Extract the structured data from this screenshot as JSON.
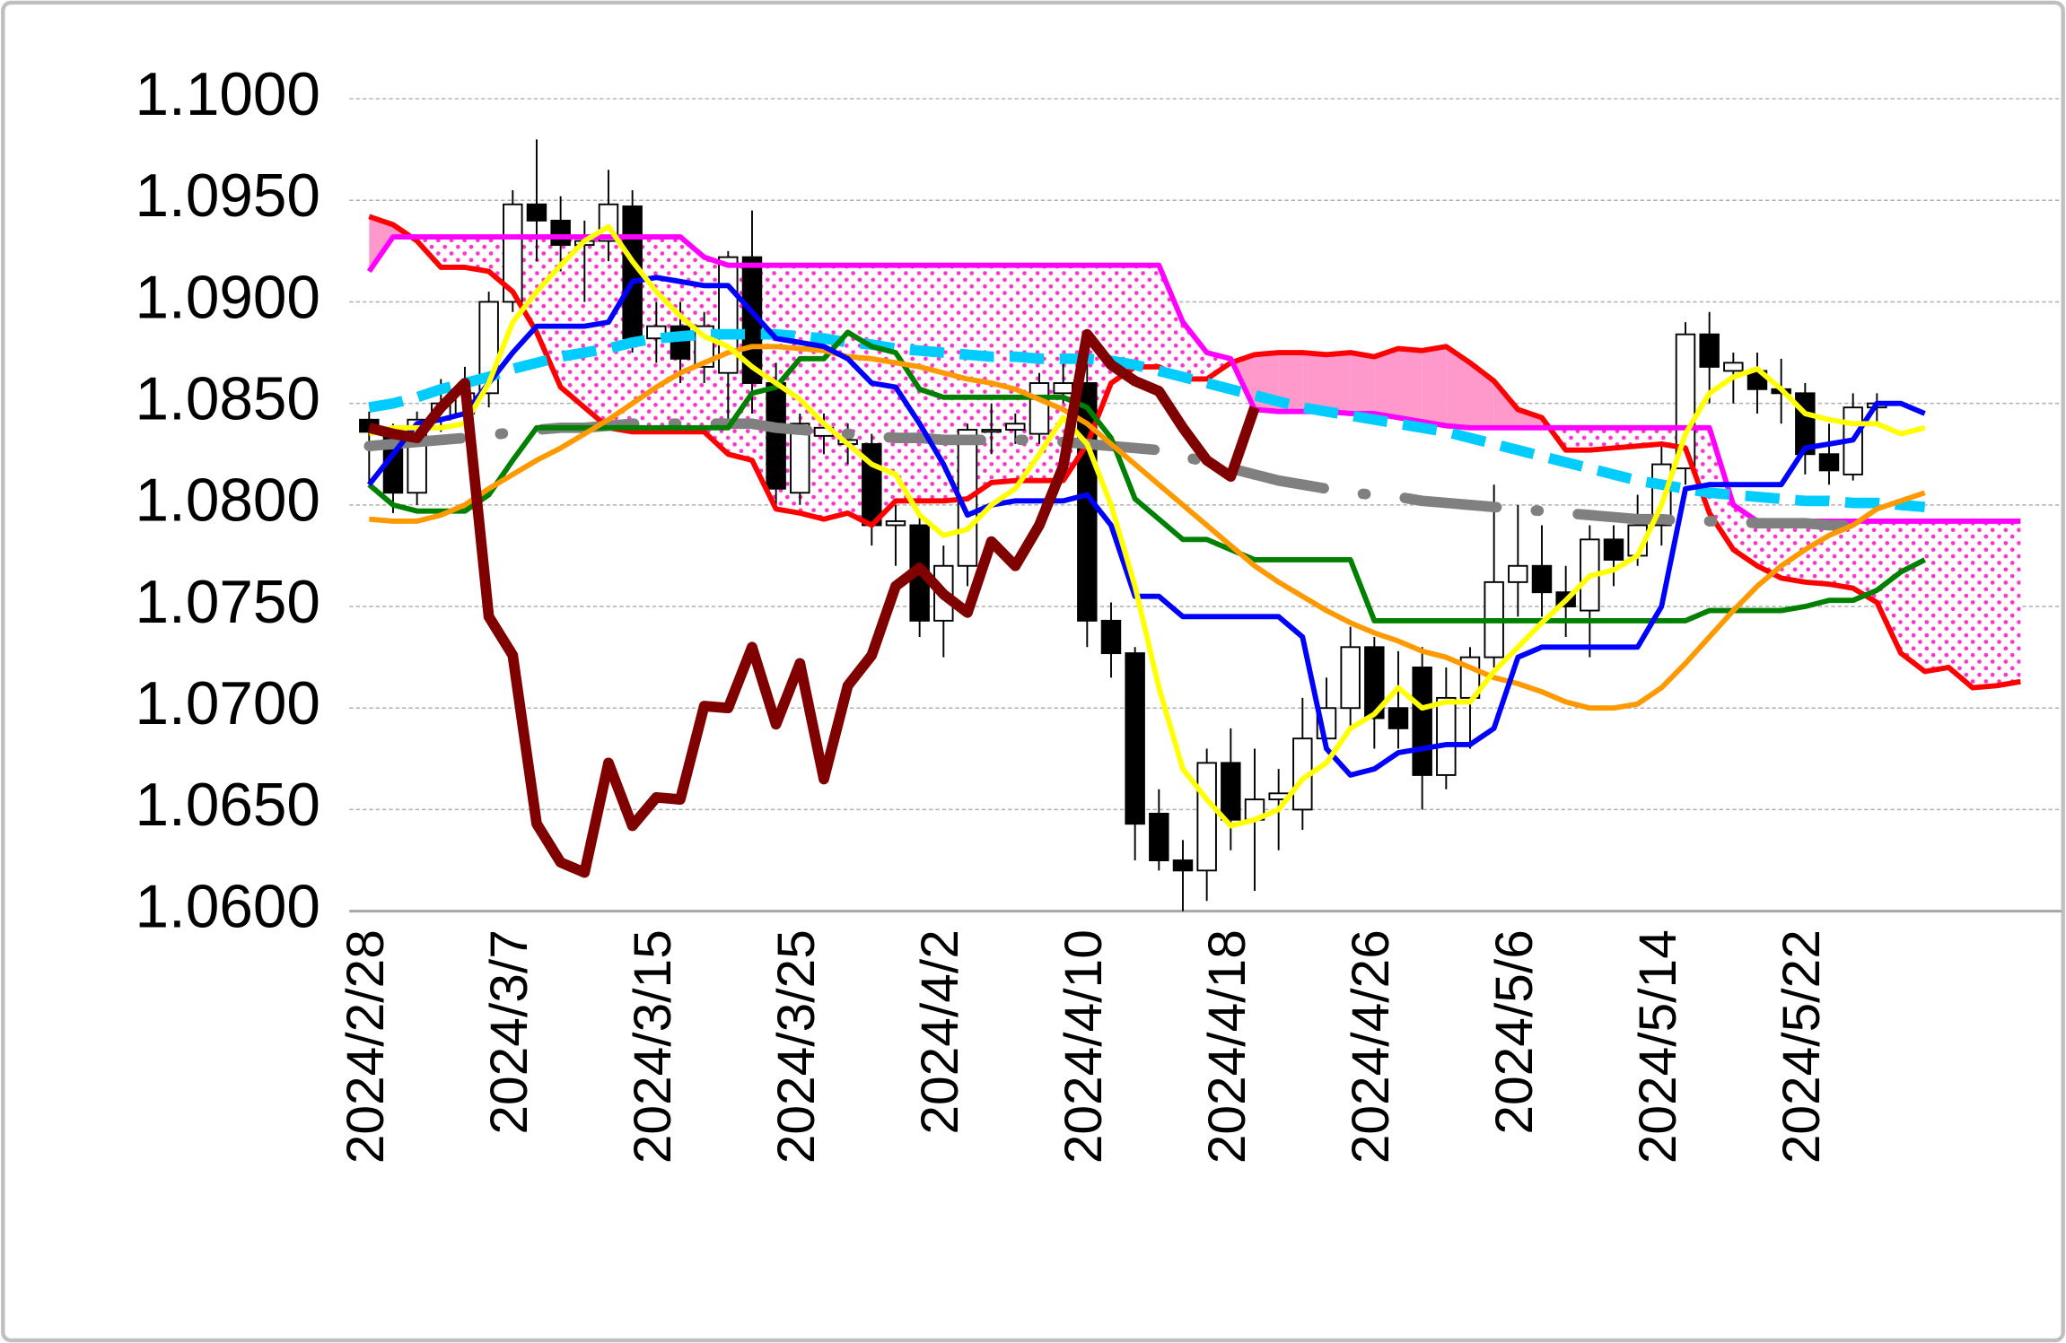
{
  "chart_data": {
    "type": "candlestick",
    "categories": [
      "2024/2/28",
      null,
      null,
      null,
      null,
      null,
      "2024/3/7",
      null,
      null,
      null,
      null,
      null,
      "2024/3/15",
      null,
      null,
      null,
      null,
      null,
      "2024/3/25",
      null,
      null,
      null,
      null,
      null,
      "2024/4/2",
      null,
      null,
      null,
      null,
      null,
      "2024/4/10",
      null,
      null,
      null,
      null,
      null,
      "2024/4/18",
      null,
      null,
      null,
      null,
      null,
      "2024/4/26",
      null,
      null,
      null,
      null,
      null,
      "2024/5/6",
      null,
      null,
      null,
      null,
      null,
      "2024/5/14",
      null,
      null,
      null,
      null,
      null,
      "2024/5/22",
      null,
      null,
      null,
      null,
      null,
      null,
      null,
      null,
      null
    ],
    "ylim": [
      1.06,
      1.1
    ],
    "yticks": [
      {
        "value": 1.06,
        "label": "1.0600"
      },
      {
        "value": 1.065,
        "label": "1.0650"
      },
      {
        "value": 1.07,
        "label": "1.0700"
      },
      {
        "value": 1.075,
        "label": "1.0750"
      },
      {
        "value": 1.08,
        "label": "1.0800"
      },
      {
        "value": 1.085,
        "label": "1.0850"
      },
      {
        "value": 1.09,
        "label": "1.0900"
      },
      {
        "value": 1.095,
        "label": "1.0950"
      },
      {
        "value": 1.1,
        "label": "1.1000"
      }
    ],
    "grid": true,
    "cloud": true,
    "candles": {
      "up_color": "#ffffff",
      "down_color": "#000000",
      "open": [
        1.0842,
        1.0836,
        1.0806,
        1.0842,
        1.0845,
        1.0855,
        1.09,
        1.0948,
        1.094,
        1.0928,
        1.093,
        1.0947,
        1.0882,
        1.0888,
        1.0868,
        1.0865,
        1.0922,
        1.086,
        1.0806,
        1.0834,
        1.083,
        1.083,
        1.079,
        1.079,
        1.0743,
        1.077,
        1.0837,
        1.0837,
        1.0835,
        1.0855,
        1.086,
        1.0743,
        1.0727,
        1.0648,
        1.0625,
        1.062,
        1.0673,
        1.0645,
        1.0655,
        1.065,
        1.0685,
        1.07,
        1.073,
        1.07,
        1.072,
        1.0667,
        1.0705,
        1.0725,
        1.0762,
        1.077,
        1.0757,
        1.0748,
        1.0783,
        1.0775,
        1.079,
        1.0818,
        1.0884,
        1.0866,
        1.0866,
        1.0857,
        1.0855,
        1.0825,
        1.0815,
        1.0848,
        null,
        null,
        null,
        null,
        null,
        null
      ],
      "high": [
        1.0846,
        1.084,
        1.0846,
        1.0862,
        1.0868,
        1.0905,
        1.0955,
        1.098,
        1.0952,
        1.094,
        1.0965,
        1.0955,
        1.09,
        1.09,
        1.0895,
        1.0925,
        1.0945,
        1.087,
        1.0845,
        1.0845,
        1.084,
        1.0835,
        1.08,
        1.0795,
        1.078,
        1.084,
        1.085,
        1.0845,
        1.0865,
        1.087,
        1.088,
        1.0752,
        1.073,
        1.066,
        1.0635,
        1.068,
        1.069,
        1.068,
        1.067,
        1.0705,
        1.0715,
        1.074,
        1.0735,
        1.0728,
        1.073,
        1.072,
        1.073,
        1.081,
        1.08,
        1.079,
        1.077,
        1.079,
        1.079,
        1.0805,
        1.083,
        1.089,
        1.0895,
        1.0875,
        1.0875,
        1.0872,
        1.086,
        1.084,
        1.0855,
        1.0855,
        null,
        null,
        null,
        null,
        null,
        null
      ],
      "low": [
        1.081,
        1.0796,
        1.08,
        1.0836,
        1.084,
        1.0848,
        1.0895,
        1.092,
        1.0915,
        1.09,
        1.092,
        1.0875,
        1.087,
        1.086,
        1.086,
        1.084,
        1.0845,
        1.08,
        1.08,
        1.0825,
        1.082,
        1.078,
        1.077,
        1.0735,
        1.0725,
        1.076,
        1.0825,
        1.083,
        1.083,
        1.085,
        1.073,
        1.0715,
        1.0625,
        1.062,
        1.06,
        1.0605,
        1.063,
        1.061,
        1.063,
        1.064,
        1.068,
        1.069,
        1.068,
        1.068,
        1.065,
        1.066,
        1.068,
        1.072,
        1.0745,
        1.0745,
        1.0735,
        1.0725,
        1.076,
        1.077,
        1.078,
        1.081,
        1.085,
        1.085,
        1.0845,
        1.084,
        1.0815,
        1.081,
        1.0812,
        1.084,
        null,
        null,
        null,
        null,
        null,
        null
      ],
      "close": [
        1.0836,
        1.0806,
        1.0842,
        1.085,
        1.0855,
        1.09,
        1.0948,
        1.094,
        1.0928,
        1.093,
        1.0948,
        1.0882,
        1.0888,
        1.0872,
        1.0888,
        1.0922,
        1.086,
        1.0808,
        1.084,
        1.0838,
        1.0832,
        1.079,
        1.0792,
        1.0743,
        1.077,
        1.0837,
        1.0837,
        1.084,
        1.086,
        1.086,
        1.0743,
        1.0727,
        1.0643,
        1.0625,
        1.062,
        1.0673,
        1.0645,
        1.0655,
        1.0658,
        1.0685,
        1.07,
        1.073,
        1.0695,
        1.069,
        1.0667,
        1.0705,
        1.0725,
        1.0762,
        1.077,
        1.0757,
        1.075,
        1.0783,
        1.0773,
        1.079,
        1.082,
        1.0884,
        1.0868,
        1.087,
        1.0857,
        1.0855,
        1.0825,
        1.0817,
        1.0848,
        1.085,
        null,
        null,
        null,
        null,
        null,
        null
      ]
    },
    "series": [
      {
        "color": "#ff0000",
        "style": "solid",
        "values": [
          1.0942,
          1.0938,
          1.093,
          1.0917,
          1.0917,
          1.0915,
          1.0905,
          1.0885,
          1.0858,
          1.0848,
          1.0838,
          1.0836,
          1.0836,
          1.0836,
          1.0836,
          1.0825,
          1.0822,
          1.0798,
          1.0796,
          1.0793,
          1.0796,
          1.079,
          1.0802,
          1.0802,
          1.0802,
          1.0803,
          1.0811,
          1.0812,
          1.0812,
          1.0812,
          1.083,
          1.086,
          1.0868,
          1.0868,
          1.0862,
          1.0862,
          1.087,
          1.0874,
          1.0875,
          1.0875,
          1.0874,
          1.0875,
          1.0873,
          1.0877,
          1.0876,
          1.0878,
          1.087,
          1.0861,
          1.0847,
          1.0843,
          1.0827,
          1.0827,
          1.0828,
          1.0829,
          1.083,
          1.0828,
          1.0796,
          1.0778,
          1.077,
          1.0764,
          1.0762,
          1.0761,
          1.0759,
          1.0752,
          1.0727,
          1.0718,
          1.072,
          1.071,
          1.0711,
          1.0713
        ]
      },
      {
        "color": "#ff00ff",
        "style": "solid",
        "values": [
          1.0915,
          1.0932,
          1.0932,
          1.0932,
          1.0932,
          1.0932,
          1.0932,
          1.0932,
          1.0932,
          1.0932,
          1.0932,
          1.0932,
          1.0932,
          1.0932,
          1.0922,
          1.0918,
          1.0918,
          1.0918,
          1.0918,
          1.0918,
          1.0918,
          1.0918,
          1.0918,
          1.0918,
          1.0918,
          1.0918,
          1.0918,
          1.0918,
          1.0918,
          1.0918,
          1.0918,
          1.0918,
          1.0918,
          1.0918,
          1.089,
          1.0875,
          1.0872,
          1.0847,
          1.0846,
          1.0846,
          1.0846,
          1.0845,
          1.0845,
          1.0843,
          1.0841,
          1.0839,
          1.0838,
          1.0838,
          1.0838,
          1.0838,
          1.0838,
          1.0838,
          1.0838,
          1.0838,
          1.0838,
          1.0838,
          1.0838,
          1.08,
          1.0792,
          1.0792,
          1.0792,
          1.0792,
          1.0792,
          1.0792,
          1.0792,
          1.0792,
          1.0792,
          1.0792,
          1.0792,
          1.0792
        ]
      },
      {
        "color": "#808080",
        "style": "dash-dot",
        "values": [
          1.0829,
          1.083,
          1.0831,
          1.0832,
          1.0833,
          1.0834,
          1.0836,
          1.0837,
          1.0838,
          1.0838,
          1.0839,
          1.084,
          1.084,
          1.084,
          1.084,
          1.084,
          1.084,
          1.0838,
          1.0837,
          1.0836,
          1.0835,
          1.0834,
          1.0833,
          1.0833,
          1.0832,
          1.0832,
          1.0832,
          1.0832,
          1.0832,
          1.0831,
          1.083,
          1.0829,
          1.0828,
          1.0827,
          1.0824,
          1.0821,
          1.0818,
          1.0815,
          1.0812,
          1.081,
          1.0808,
          1.0806,
          1.0805,
          1.0804,
          1.0802,
          1.0801,
          1.08,
          1.0799,
          1.0798,
          1.0797,
          1.0796,
          1.0795,
          1.0794,
          1.0793,
          1.0793,
          1.0792,
          1.0792,
          1.0792,
          1.0791,
          1.0791,
          1.0791,
          1.079,
          1.079,
          1.079,
          null,
          null,
          null,
          null,
          null,
          null
        ]
      },
      {
        "color": "#00ccff",
        "style": "dashed",
        "values": [
          1.0848,
          1.085,
          1.0853,
          1.0857,
          1.086,
          1.0863,
          1.0867,
          1.087,
          1.0873,
          1.0875,
          1.0877,
          1.088,
          1.0882,
          1.0883,
          1.0884,
          1.0884,
          1.0884,
          1.0884,
          1.0883,
          1.0882,
          1.088,
          1.0879,
          1.0877,
          1.0876,
          1.0875,
          1.0874,
          1.0873,
          1.0873,
          1.0872,
          1.0872,
          1.0872,
          1.0871,
          1.0869,
          1.0866,
          1.0863,
          1.086,
          1.0857,
          1.0854,
          1.0851,
          1.0848,
          1.0846,
          1.0844,
          1.0842,
          1.084,
          1.0838,
          1.0836,
          1.0833,
          1.083,
          1.0827,
          1.0824,
          1.0821,
          1.0818,
          1.0815,
          1.0812,
          1.081,
          1.0808,
          1.0806,
          1.0805,
          1.0804,
          1.0803,
          1.0802,
          1.0802,
          1.0801,
          1.0801,
          1.08,
          1.0799,
          null,
          null,
          null,
          null
        ]
      },
      {
        "color": "#008000",
        "style": "solid",
        "values": [
          1.081,
          1.08,
          1.0797,
          1.0797,
          1.0797,
          1.0805,
          1.0822,
          1.0838,
          1.0838,
          1.0838,
          1.0838,
          1.0838,
          1.0838,
          1.0838,
          1.0838,
          1.0838,
          1.0855,
          1.0858,
          1.0872,
          1.0872,
          1.0885,
          1.0878,
          1.0875,
          1.0857,
          1.0853,
          1.0853,
          1.0853,
          1.0853,
          1.0853,
          1.0853,
          1.0848,
          1.0833,
          1.0803,
          1.0793,
          1.0783,
          1.0783,
          1.0778,
          1.0773,
          1.0773,
          1.0773,
          1.0773,
          1.0773,
          1.0743,
          1.0743,
          1.0743,
          1.0743,
          1.0743,
          1.0743,
          1.0743,
          1.0743,
          1.0743,
          1.0743,
          1.0743,
          1.0743,
          1.0743,
          1.0743,
          1.0748,
          1.0748,
          1.0748,
          1.0748,
          1.075,
          1.0753,
          1.0753,
          1.0758,
          1.0767,
          1.0773,
          null,
          null,
          null,
          null
        ]
      },
      {
        "color": "#ff9900",
        "style": "solid",
        "values": [
          1.0793,
          1.0792,
          1.0792,
          1.0795,
          1.08,
          1.0808,
          1.0815,
          1.0822,
          1.0828,
          1.0835,
          1.0842,
          1.085,
          1.0858,
          1.0865,
          1.087,
          1.0875,
          1.0878,
          1.0878,
          1.0877,
          1.0876,
          1.0873,
          1.0872,
          1.087,
          1.0868,
          1.0865,
          1.0862,
          1.086,
          1.0857,
          1.0852,
          1.0847,
          1.084,
          1.083,
          1.082,
          1.081,
          1.08,
          1.079,
          1.078,
          1.077,
          1.0762,
          1.0755,
          1.0748,
          1.0742,
          1.0737,
          1.0733,
          1.0728,
          1.0725,
          1.072,
          1.0715,
          1.0712,
          1.0708,
          1.0703,
          1.07,
          1.07,
          1.0702,
          1.071,
          1.0722,
          1.0735,
          1.0748,
          1.076,
          1.077,
          1.0778,
          1.0785,
          1.079,
          1.0798,
          1.0802,
          1.0806,
          null,
          null,
          null,
          null
        ]
      },
      {
        "color": "#0000ff",
        "style": "solid",
        "values": [
          1.081,
          1.0825,
          1.084,
          1.0842,
          1.0845,
          1.086,
          1.0875,
          1.0888,
          1.0888,
          1.0888,
          1.089,
          1.091,
          1.0912,
          1.091,
          1.0908,
          1.0908,
          1.0895,
          1.0882,
          1.088,
          1.0878,
          1.0872,
          1.086,
          1.0858,
          1.084,
          1.082,
          1.0795,
          1.08,
          1.0802,
          1.0802,
          1.0802,
          1.0805,
          1.079,
          1.0755,
          1.0755,
          1.0745,
          1.0745,
          1.0745,
          1.0745,
          1.0745,
          1.0735,
          1.068,
          1.0667,
          1.067,
          1.0678,
          1.068,
          1.0682,
          1.0682,
          1.069,
          1.0725,
          1.073,
          1.073,
          1.073,
          1.073,
          1.073,
          1.075,
          1.0808,
          1.081,
          1.081,
          1.081,
          1.081,
          1.0828,
          1.083,
          1.0832,
          1.085,
          1.085,
          1.0845,
          null,
          null,
          null,
          null
        ]
      },
      {
        "color": "#ffff00",
        "style": "solid",
        "values": [
          1.0835,
          1.0838,
          1.0838,
          1.0838,
          1.084,
          1.086,
          1.089,
          1.0905,
          1.0918,
          1.093,
          1.0937,
          1.092,
          1.0905,
          1.0893,
          1.0883,
          1.0878,
          1.0868,
          1.086,
          1.0852,
          1.084,
          1.083,
          1.082,
          1.0815,
          1.0795,
          1.0785,
          1.0788,
          1.08,
          1.0808,
          1.0825,
          1.0843,
          1.083,
          1.08,
          1.076,
          1.071,
          1.067,
          1.0655,
          1.0642,
          1.0645,
          1.065,
          1.0665,
          1.0673,
          1.069,
          1.0697,
          1.071,
          1.07,
          1.0703,
          1.0703,
          1.0718,
          1.073,
          1.0742,
          1.0753,
          1.0765,
          1.0768,
          1.0775,
          1.08,
          1.0835,
          1.0855,
          1.0863,
          1.0867,
          1.0857,
          1.0845,
          1.0842,
          1.084,
          1.084,
          1.0835,
          1.0838,
          null,
          null,
          null,
          null
        ]
      },
      {
        "color": "#800000",
        "style": "thick",
        "values": [
          1.0838,
          1.0835,
          1.0833,
          1.0848,
          1.086,
          1.0745,
          1.0726,
          1.0643,
          1.0624,
          1.0619,
          1.0673,
          1.0642,
          1.0656,
          1.0655,
          1.0701,
          1.07,
          1.073,
          1.0692,
          1.0722,
          1.0665,
          1.0711,
          1.0726,
          1.076,
          1.0769,
          1.0756,
          1.0747,
          1.0782,
          1.077,
          1.079,
          1.0819,
          1.0884,
          1.0869,
          1.0861,
          1.0856,
          1.0838,
          1.0822,
          1.0814,
          1.0848,
          null,
          null,
          null,
          null,
          null,
          null,
          null,
          null,
          null,
          null,
          null,
          null,
          null,
          null,
          null,
          null,
          null,
          null,
          null,
          null,
          null,
          null,
          null,
          null,
          null,
          null,
          null,
          null,
          null,
          null,
          null,
          null
        ]
      }
    ]
  }
}
